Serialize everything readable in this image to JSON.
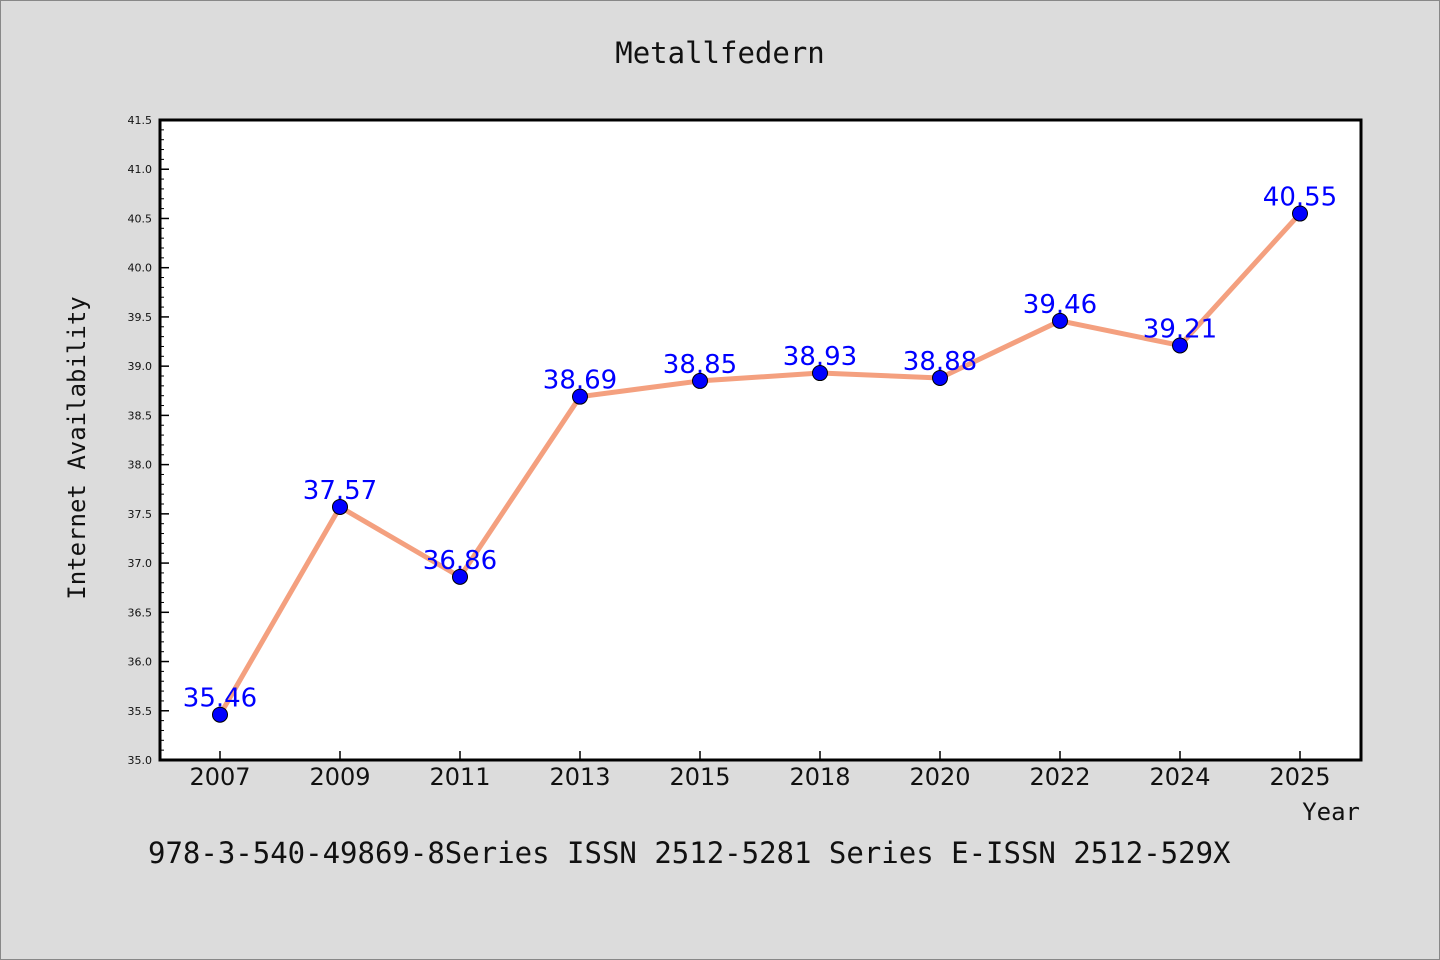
{
  "chart_data": {
    "type": "line",
    "title": "Metallfedern",
    "xlabel": "Year",
    "ylabel": "Internet Availability",
    "categories": [
      "2007",
      "2009",
      "2011",
      "2013",
      "2015",
      "2018",
      "2020",
      "2022",
      "2024",
      "2025"
    ],
    "values": [
      35.46,
      37.57,
      36.86,
      38.69,
      38.85,
      38.93,
      38.88,
      39.46,
      39.21,
      40.55
    ],
    "value_labels": [
      "35.46",
      "37.57",
      "36.86",
      "38.69",
      "38.85",
      "38.93",
      "38.88",
      "39.46",
      "39.21",
      "40.55"
    ],
    "ylim": [
      35.0,
      41.5
    ],
    "yticks": [
      "35.0",
      "35.5",
      "36.0",
      "36.5",
      "37.0",
      "37.5",
      "38.0",
      "38.5",
      "39.0",
      "39.5",
      "40.0",
      "40.5",
      "41.0",
      "41.5"
    ],
    "grid": false,
    "line_color": "#f4a07f",
    "marker_color": "#0000ff",
    "label_color": "#0000ff",
    "footer": "978-3-540-49869-8Series ISSN 2512-5281 Series E-ISSN 2512-529X"
  }
}
